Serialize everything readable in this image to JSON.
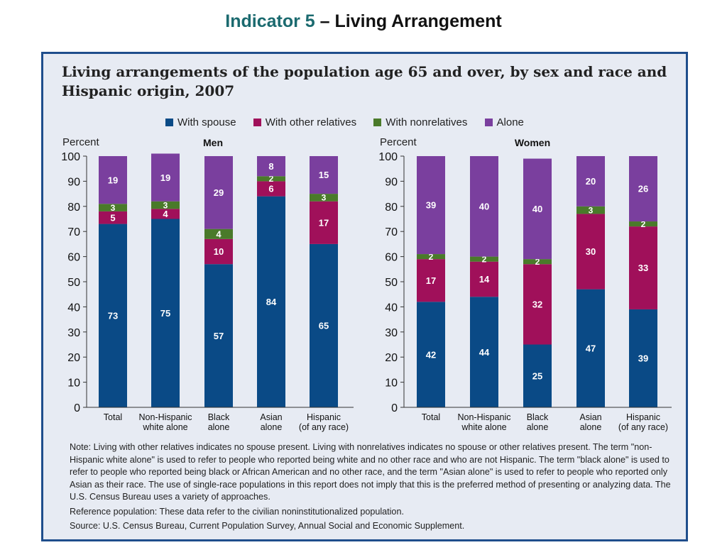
{
  "slide": {
    "title_accent": "Indicator 5",
    "title_rest": " – Living Arrangement"
  },
  "figure": {
    "title_line1": "Living arrangements of the population age 65 and over, by sex and race and",
    "title_line2": "Hispanic origin, 2007",
    "legend": [
      {
        "label": "With spouse",
        "color": "#0a4a86"
      },
      {
        "label": "With other relatives",
        "color": "#a0105a"
      },
      {
        "label": "With nonrelatives",
        "color": "#4a7a2a"
      },
      {
        "label": "Alone",
        "color": "#7a3f9e"
      }
    ],
    "notes": [
      "Note: Living with other relatives indicates no spouse present. Living with nonrelatives indicates no spouse or other relatives present. The term \"non-Hispanic white alone\" is used to refer to people who reported being white and no other race and who are not Hispanic. The term \"black alone\" is used to refer to people who reported being black or African American and no other race, and the term \"Asian alone\" is used to refer to people who reported only Asian as their race. The use of single-race populations in this report does not imply that this is the preferred method of presenting or analyzing data. The U.S. Census Bureau uses a variety of approaches.",
      "Reference population: These data refer to the civilian noninstitutionalized population.",
      "Source: U.S. Census Bureau, Current Population Survey, Annual Social and Economic Supplement."
    ]
  },
  "chart_data": [
    {
      "type": "bar",
      "stacked": true,
      "title": "Men",
      "ylabel": "Percent",
      "ylim": [
        0,
        100
      ],
      "yticks": [
        0,
        10,
        20,
        30,
        40,
        50,
        60,
        70,
        80,
        90,
        100
      ],
      "categories": [
        [
          "Total"
        ],
        [
          "Non-Hispanic",
          "white alone"
        ],
        [
          "Black",
          "alone"
        ],
        [
          "Asian",
          "alone"
        ],
        [
          "Hispanic",
          "(of any race)"
        ]
      ],
      "series": [
        {
          "name": "With spouse",
          "values": [
            73,
            75,
            57,
            84,
            65
          ]
        },
        {
          "name": "With other relatives",
          "values": [
            5,
            4,
            10,
            6,
            17
          ]
        },
        {
          "name": "With nonrelatives",
          "values": [
            3,
            3,
            4,
            2,
            3
          ]
        },
        {
          "name": "Alone",
          "values": [
            19,
            19,
            29,
            8,
            15
          ]
        }
      ]
    },
    {
      "type": "bar",
      "stacked": true,
      "title": "Women",
      "ylabel": "Percent",
      "ylim": [
        0,
        100
      ],
      "yticks": [
        0,
        10,
        20,
        30,
        40,
        50,
        60,
        70,
        80,
        90,
        100
      ],
      "categories": [
        [
          "Total"
        ],
        [
          "Non-Hispanic",
          "white alone"
        ],
        [
          "Black",
          "alone"
        ],
        [
          "Asian",
          "alone"
        ],
        [
          "Hispanic",
          "(of any race)"
        ]
      ],
      "series": [
        {
          "name": "With spouse",
          "values": [
            42,
            44,
            25,
            47,
            39
          ]
        },
        {
          "name": "With other relatives",
          "values": [
            17,
            14,
            32,
            30,
            33
          ]
        },
        {
          "name": "With nonrelatives",
          "values": [
            2,
            2,
            2,
            3,
            2
          ]
        },
        {
          "name": "Alone",
          "values": [
            39,
            40,
            40,
            20,
            26
          ]
        }
      ]
    }
  ]
}
